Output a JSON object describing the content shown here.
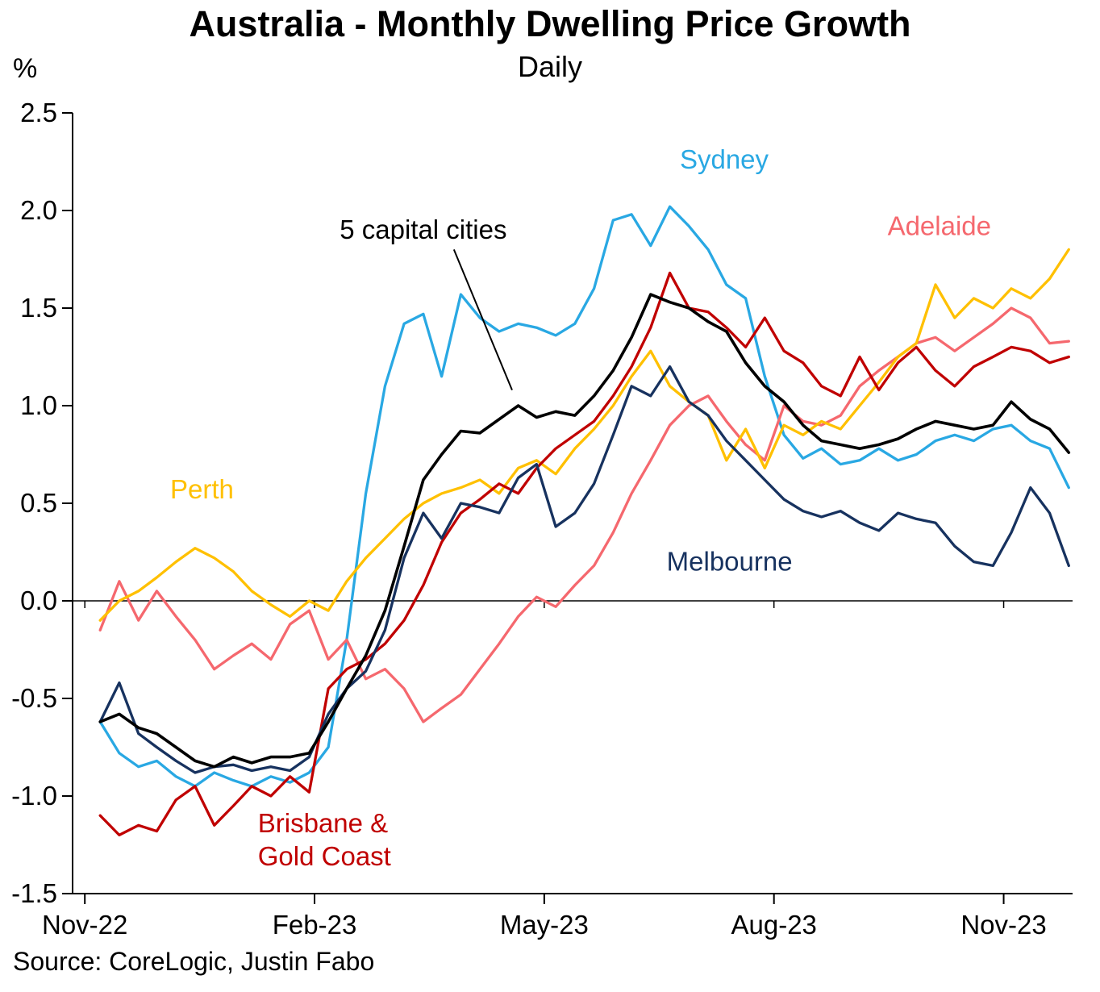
{
  "chart_data": {
    "type": "line",
    "title": "Australia - Monthly Dwelling Price Growth",
    "subtitle": "Daily",
    "ylabel": "%",
    "xlabel": "",
    "source": "Source: CoreLogic, Justin Fabo",
    "x_unit": "months-since-Nov-2022",
    "xlim": [
      -0.16,
      12.9
    ],
    "ylim": [
      -1.5,
      2.5
    ],
    "grid": false,
    "legend": "inline-annotations",
    "x_ticks": [
      {
        "label": "Nov-22",
        "t": 0
      },
      {
        "label": "Feb-23",
        "t": 3
      },
      {
        "label": "May-23",
        "t": 6
      },
      {
        "label": "Aug-23",
        "t": 9
      },
      {
        "label": "Nov-23",
        "t": 12
      }
    ],
    "y_ticks": [
      "2.5",
      "2.0",
      "1.5",
      "1.0",
      "0.5",
      "0.0",
      "-0.5",
      "-1.0",
      "-1.5"
    ],
    "x": [
      0.2,
      0.45,
      0.7,
      0.94,
      1.19,
      1.44,
      1.69,
      1.94,
      2.18,
      2.43,
      2.68,
      2.93,
      3.18,
      3.42,
      3.67,
      3.92,
      4.17,
      4.42,
      4.66,
      4.91,
      5.16,
      5.41,
      5.66,
      5.9,
      6.15,
      6.4,
      6.65,
      6.9,
      7.14,
      7.39,
      7.64,
      7.89,
      8.14,
      8.38,
      8.63,
      8.88,
      9.13,
      9.38,
      9.62,
      9.87,
      10.12,
      10.37,
      10.62,
      10.86,
      11.11,
      11.36,
      11.61,
      11.86,
      12.1,
      12.35,
      12.6,
      12.85
    ],
    "series": [
      {
        "id": "sydney",
        "name": "Sydney",
        "color": "#29a8e3",
        "values": [
          -0.62,
          -0.78,
          -0.85,
          -0.82,
          -0.9,
          -0.95,
          -0.88,
          -0.92,
          -0.95,
          -0.9,
          -0.93,
          -0.88,
          -0.75,
          -0.2,
          0.55,
          1.1,
          1.42,
          1.47,
          1.15,
          1.57,
          1.45,
          1.38,
          1.42,
          1.4,
          1.36,
          1.42,
          1.6,
          1.95,
          1.98,
          1.82,
          2.02,
          1.92,
          1.8,
          1.62,
          1.55,
          1.15,
          0.85,
          0.73,
          0.78,
          0.7,
          0.72,
          0.78,
          0.72,
          0.75,
          0.82,
          0.85,
          0.82,
          0.88,
          0.9,
          0.82,
          0.78,
          0.58
        ]
      },
      {
        "id": "adelaide",
        "name": "Adelaide",
        "color": "#f5686e",
        "values": [
          -0.15,
          0.1,
          -0.1,
          0.05,
          -0.08,
          -0.2,
          -0.35,
          -0.28,
          -0.22,
          -0.3,
          -0.12,
          -0.05,
          -0.3,
          -0.2,
          -0.4,
          -0.35,
          -0.45,
          -0.62,
          -0.55,
          -0.48,
          -0.35,
          -0.22,
          -0.08,
          0.02,
          -0.03,
          0.08,
          0.18,
          0.35,
          0.55,
          0.72,
          0.9,
          1.0,
          1.05,
          0.92,
          0.8,
          0.72,
          1.0,
          0.92,
          0.9,
          0.95,
          1.1,
          1.18,
          1.25,
          1.32,
          1.35,
          1.28,
          1.35,
          1.42,
          1.5,
          1.45,
          1.32,
          1.33
        ]
      },
      {
        "id": "perth",
        "name": "Perth",
        "color": "#ffc000",
        "values": [
          -0.1,
          0.0,
          0.05,
          0.12,
          0.2,
          0.27,
          0.22,
          0.15,
          0.05,
          -0.02,
          -0.08,
          0.0,
          -0.05,
          0.1,
          0.22,
          0.32,
          0.42,
          0.5,
          0.55,
          0.58,
          0.62,
          0.55,
          0.68,
          0.72,
          0.65,
          0.78,
          0.88,
          1.0,
          1.15,
          1.28,
          1.1,
          1.02,
          0.95,
          0.72,
          0.88,
          0.68,
          0.9,
          0.85,
          0.92,
          0.88,
          1.0,
          1.12,
          1.25,
          1.32,
          1.62,
          1.45,
          1.55,
          1.5,
          1.6,
          1.55,
          1.65,
          1.8
        ]
      },
      {
        "id": "brisbane-gold-coast",
        "name": "Brisbane & Gold Coast",
        "color": "#c00000",
        "values": [
          -1.1,
          -1.2,
          -1.15,
          -1.18,
          -1.02,
          -0.95,
          -1.15,
          -1.05,
          -0.95,
          -1.0,
          -0.9,
          -0.98,
          -0.45,
          -0.35,
          -0.3,
          -0.22,
          -0.1,
          0.08,
          0.3,
          0.45,
          0.52,
          0.6,
          0.55,
          0.68,
          0.78,
          0.85,
          0.92,
          1.05,
          1.2,
          1.4,
          1.68,
          1.5,
          1.48,
          1.4,
          1.3,
          1.45,
          1.28,
          1.22,
          1.1,
          1.05,
          1.25,
          1.08,
          1.22,
          1.3,
          1.18,
          1.1,
          1.2,
          1.25,
          1.3,
          1.28,
          1.22,
          1.25
        ]
      },
      {
        "id": "melbourne",
        "name": "Melbourne",
        "color": "#17325f",
        "values": [
          -0.62,
          -0.42,
          -0.68,
          -0.75,
          -0.82,
          -0.88,
          -0.85,
          -0.84,
          -0.87,
          -0.85,
          -0.87,
          -0.8,
          -0.58,
          -0.45,
          -0.36,
          -0.15,
          0.22,
          0.45,
          0.32,
          0.5,
          0.48,
          0.45,
          0.63,
          0.7,
          0.38,
          0.45,
          0.6,
          0.85,
          1.1,
          1.05,
          1.2,
          1.02,
          0.95,
          0.82,
          0.72,
          0.62,
          0.52,
          0.46,
          0.43,
          0.46,
          0.4,
          0.36,
          0.45,
          0.42,
          0.4,
          0.28,
          0.2,
          0.18,
          0.35,
          0.58,
          0.45,
          0.18
        ]
      },
      {
        "id": "five-capital-cities",
        "name": "5 capital cities",
        "color": "#000000",
        "values": [
          -0.62,
          -0.58,
          -0.65,
          -0.68,
          -0.75,
          -0.82,
          -0.85,
          -0.8,
          -0.83,
          -0.8,
          -0.8,
          -0.78,
          -0.62,
          -0.45,
          -0.28,
          -0.05,
          0.28,
          0.62,
          0.75,
          0.87,
          0.86,
          0.93,
          1.0,
          0.94,
          0.97,
          0.95,
          1.05,
          1.18,
          1.35,
          1.57,
          1.53,
          1.5,
          1.43,
          1.38,
          1.22,
          1.1,
          1.02,
          0.9,
          0.82,
          0.8,
          0.78,
          0.8,
          0.83,
          0.88,
          0.92,
          0.9,
          0.88,
          0.9,
          1.02,
          0.93,
          0.88,
          0.76
        ]
      }
    ],
    "annotations": [
      {
        "id": "series-label-sydney",
        "text": "Sydney",
        "t": 8.35,
        "v": 2.26,
        "color": "#29a8e3",
        "anchor": "middle"
      },
      {
        "id": "series-label-adelaide",
        "text": "Adelaide",
        "t": 11.16,
        "v": 1.92,
        "color": "#f5686e",
        "anchor": "middle"
      },
      {
        "id": "series-label-five-capital-cities",
        "text": "5 capital cities",
        "t": 4.42,
        "v": 1.9,
        "color": "#000000",
        "anchor": "middle"
      },
      {
        "id": "series-label-perth",
        "text": "Perth",
        "t": 1.53,
        "v": 0.57,
        "color": "#ffc000",
        "anchor": "middle"
      },
      {
        "id": "series-label-melbourne",
        "text": "Melbourne",
        "t": 8.42,
        "v": 0.2,
        "color": "#17325f",
        "anchor": "middle"
      },
      {
        "id": "series-label-brisbane-line1",
        "text": "Brisbane &",
        "t": 2.26,
        "v": -1.14,
        "color": "#c00000",
        "anchor": "start"
      },
      {
        "id": "series-label-brisbane-line2",
        "text": "Gold Coast",
        "t": 2.26,
        "v": -1.31,
        "color": "#c00000",
        "anchor": "start"
      }
    ],
    "pointer": {
      "x1": 4.82,
      "y1": 1.8,
      "x2": 5.58,
      "y2": 1.08
    }
  }
}
